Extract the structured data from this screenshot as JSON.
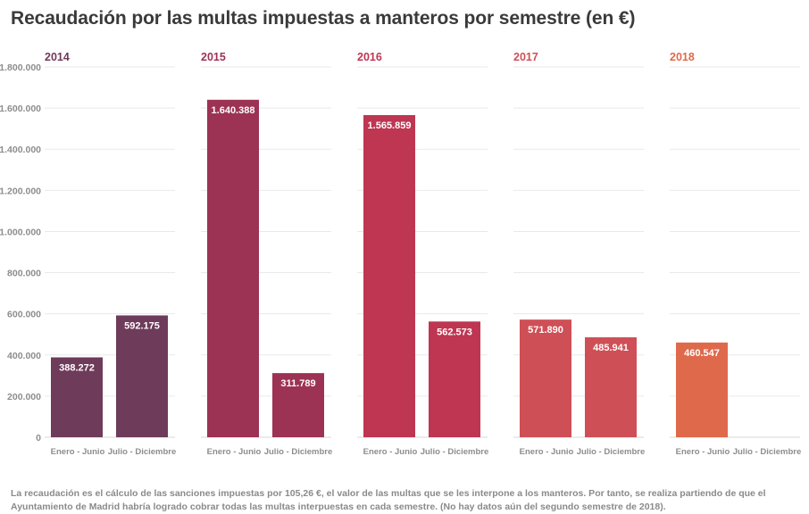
{
  "title": "Recaudación por las multas impuestas a manteros por semestre (en €)",
  "footnote": "La recaudación es el cálculo de las sanciones impuestas por 105,26 €, el valor de las multas que se les interpone a los manteros. Por tanto, se realiza partiendo de que el Ayuntamiento de Madrid habría logrado cobrar todas las multas interpuestas en cada semestre. (No hay datos aún del segundo semestre de 2018).",
  "chart_data": {
    "type": "bar",
    "layout": "small-multiples",
    "ylim": [
      0,
      1800000
    ],
    "yticks": [
      0,
      200000,
      400000,
      600000,
      800000,
      1000000,
      1200000,
      1400000,
      1600000,
      1800000
    ],
    "ytick_labels": [
      "0",
      "200.000",
      "400.000",
      "600.000",
      "800.000",
      "1.000.000",
      "1.200.000",
      "1.400.000",
      "1.600.000",
      "1.800.000"
    ],
    "categories": [
      "Enero - Junio",
      "Julio - Diciembre"
    ],
    "grid": true,
    "panels": [
      {
        "name": "2014",
        "color": "#6e3b5a",
        "values": [
          388272,
          592175
        ],
        "labels": [
          "388.272",
          "592.175"
        ]
      },
      {
        "name": "2015",
        "color": "#9c3354",
        "values": [
          1640388,
          311789
        ],
        "labels": [
          "1.640.388",
          "311.789"
        ]
      },
      {
        "name": "2016",
        "color": "#be3652",
        "values": [
          1565859,
          562573
        ],
        "labels": [
          "1.565.859",
          "562.573"
        ]
      },
      {
        "name": "2017",
        "color": "#cf4f56",
        "values": [
          571890,
          485941
        ],
        "labels": [
          "571.890",
          "485.941"
        ]
      },
      {
        "name": "2018",
        "color": "#df6a4b",
        "values": [
          460547,
          null
        ],
        "labels": [
          "460.547",
          ""
        ]
      }
    ]
  }
}
